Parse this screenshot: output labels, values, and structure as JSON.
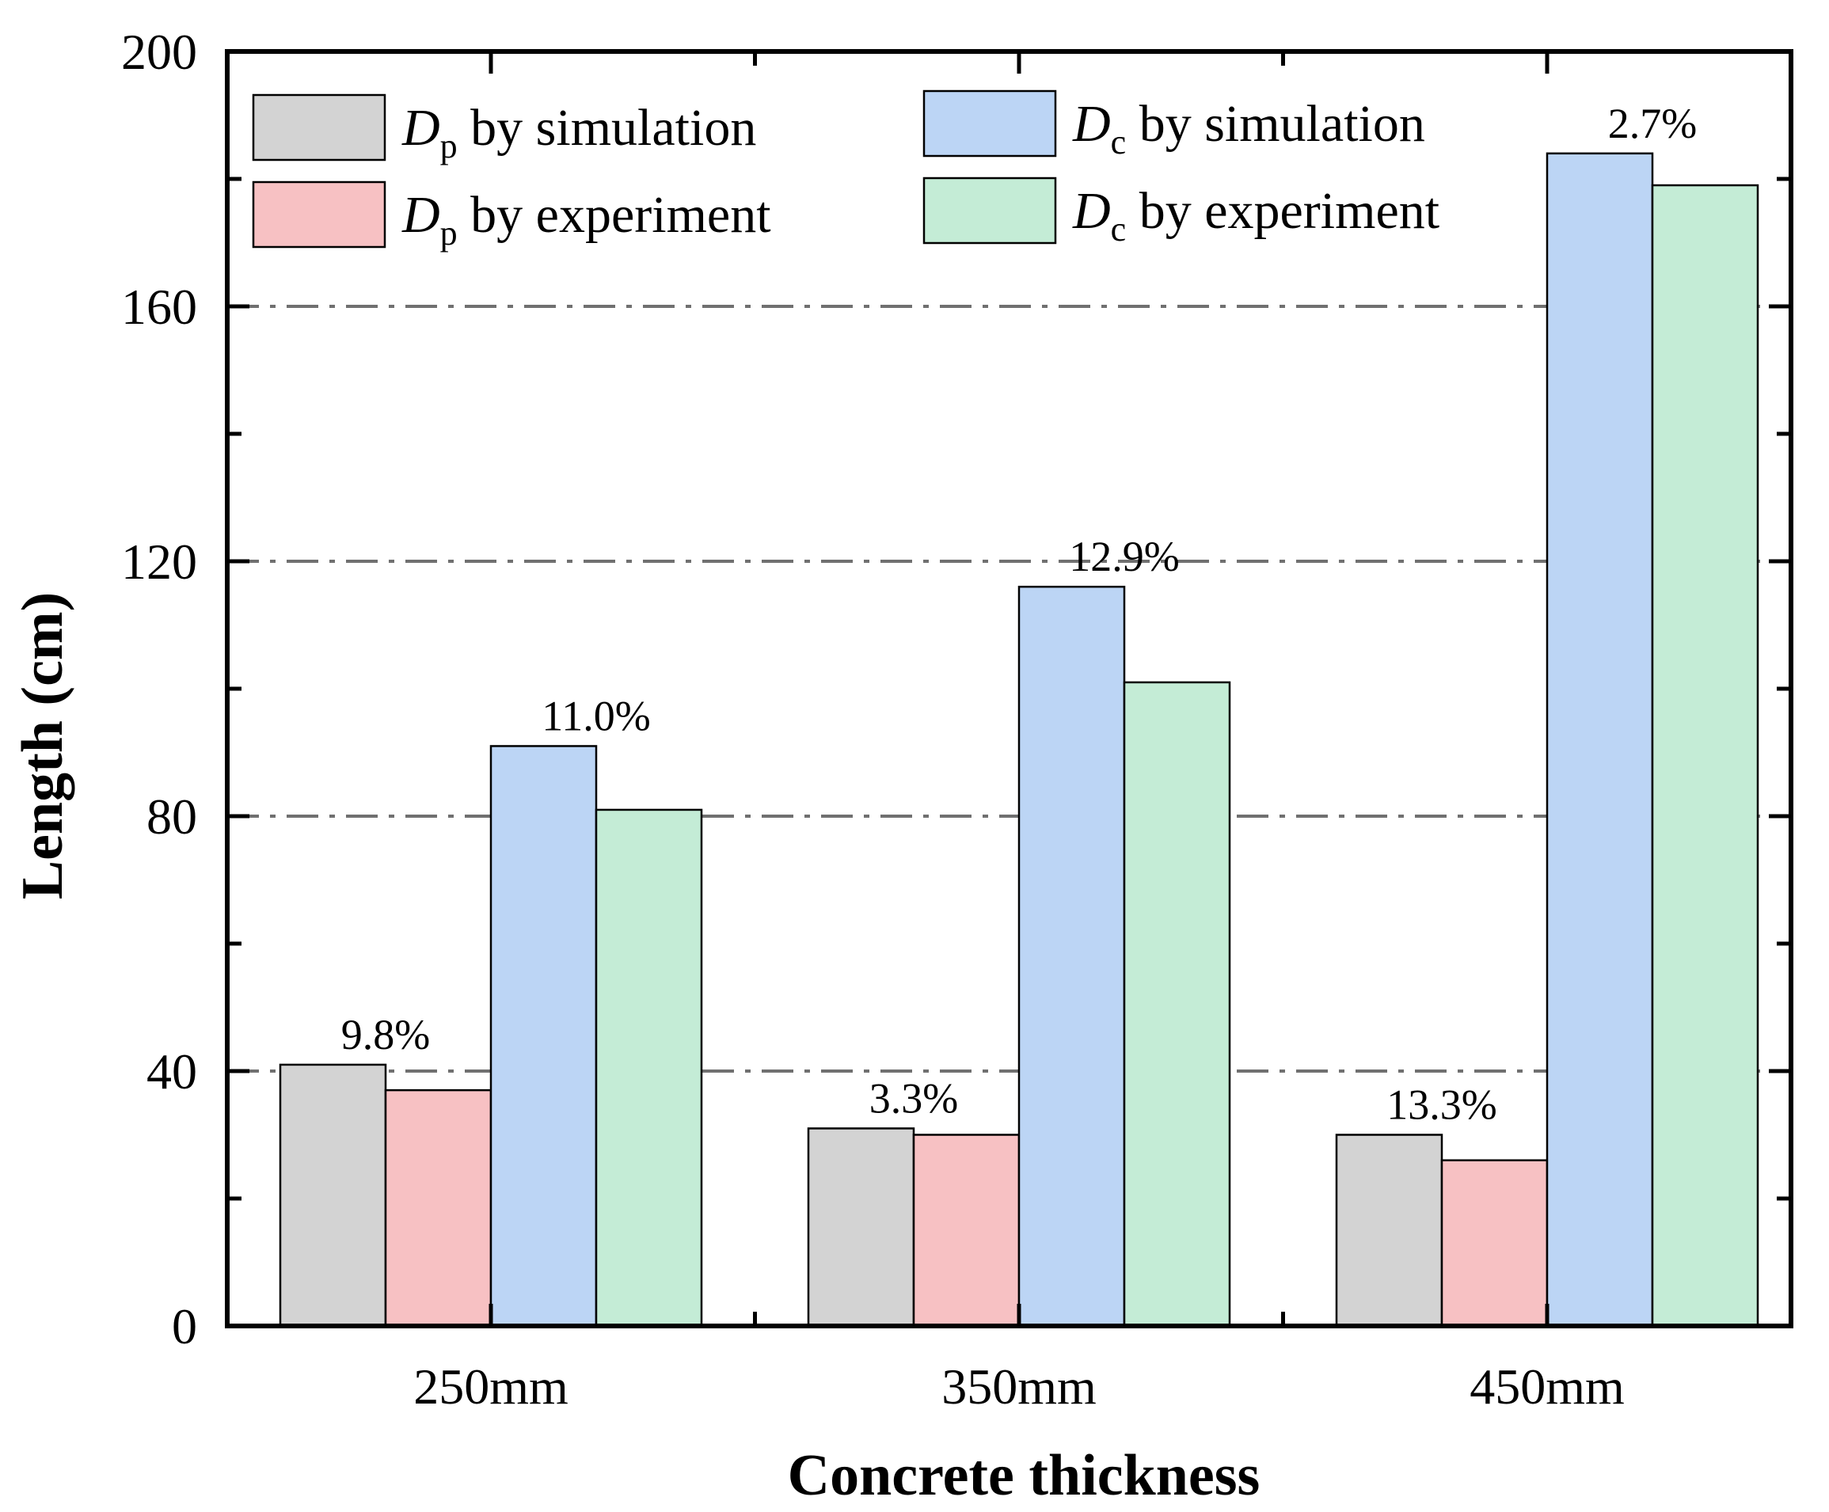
{
  "chart_data": {
    "type": "bar",
    "title": "",
    "xlabel": "Concrete thickness",
    "ylabel": "Length (cm)",
    "ylim": [
      0,
      200
    ],
    "yticks": [
      0,
      40,
      80,
      120,
      160,
      200
    ],
    "ytick_labels": [
      "0",
      "40",
      "80",
      "120",
      "160",
      "200"
    ],
    "grid": "horizontal dash-dot at 40, 80, 120, 160",
    "categories": [
      "250mm",
      "350mm",
      "450mm"
    ],
    "series": [
      {
        "name": "Dp by simulation",
        "symbol": "D",
        "subscript": "p",
        "label_rest": "by simulation",
        "color": "#d3d3d3",
        "values": [
          41,
          31,
          30
        ]
      },
      {
        "name": "Dp by experiment",
        "symbol": "D",
        "subscript": "p",
        "label_rest": "by experiment",
        "color": "#f7c1c3",
        "values": [
          37,
          30,
          26
        ]
      },
      {
        "name": "Dc by simulation",
        "symbol": "D",
        "subscript": "c",
        "label_rest": "by simulation",
        "color": "#bcd5f5",
        "values": [
          91,
          116,
          184
        ]
      },
      {
        "name": "Dc by experiment",
        "symbol": "D",
        "subscript": "c",
        "label_rest": "by experiment",
        "color": "#c4ecd6",
        "values": [
          81,
          101,
          179
        ]
      }
    ],
    "annotations": [
      {
        "category": "250mm",
        "pair": "Dp",
        "text": "9.8%"
      },
      {
        "category": "250mm",
        "pair": "Dc",
        "text": "11.0%"
      },
      {
        "category": "350mm",
        "pair": "Dp",
        "text": "3.3%"
      },
      {
        "category": "350mm",
        "pair": "Dc",
        "text": "12.9%"
      },
      {
        "category": "450mm",
        "pair": "Dp",
        "text": "13.3%"
      },
      {
        "category": "450mm",
        "pair": "Dc",
        "text": "2.7%"
      }
    ],
    "legend_position": "top, two columns"
  }
}
